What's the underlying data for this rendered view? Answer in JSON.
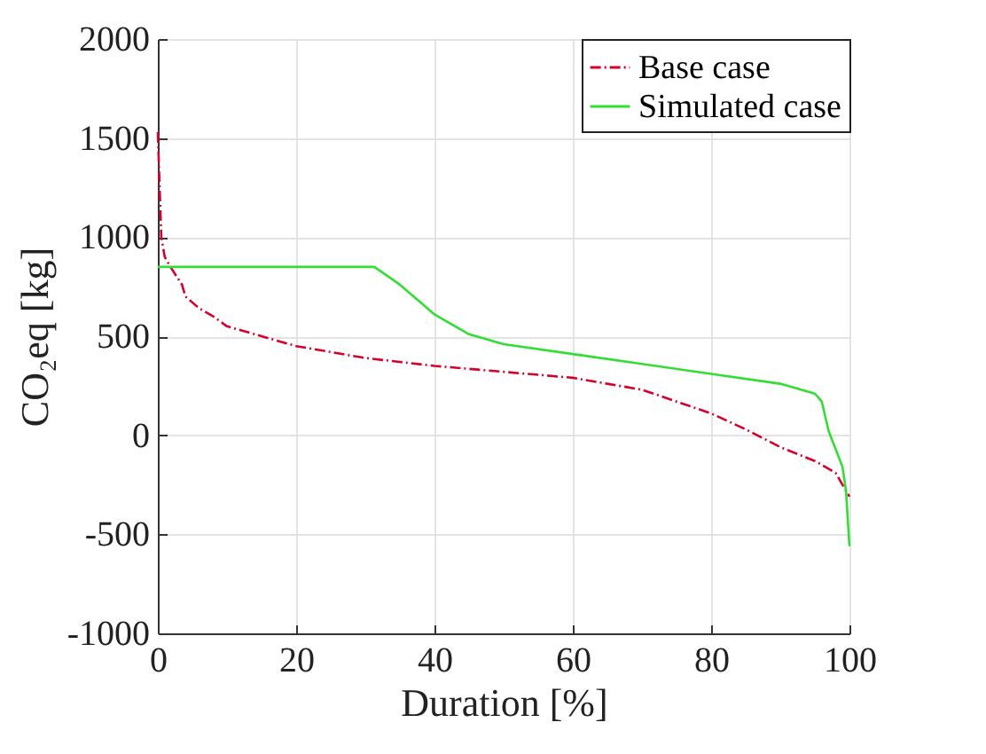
{
  "chart_data": {
    "type": "line",
    "xlabel": "Duration [%]",
    "ylabel": "CO₂eq [kg]",
    "xlim": [
      0,
      100
    ],
    "xticks": [
      0,
      20,
      40,
      60,
      80,
      100
    ],
    "ylim": [
      -1000,
      2000
    ],
    "yticks": [
      -1000,
      -500,
      0,
      500,
      1000,
      1500,
      2000
    ],
    "grid": true,
    "legend": "top right",
    "marker": "none",
    "series": [
      {
        "name": "Base case",
        "color": "#d6002e",
        "line_style": "dashdot",
        "x": [
          0,
          0.5,
          1,
          2,
          3.5,
          4,
          6,
          8,
          10,
          15,
          20,
          25,
          30,
          35,
          40,
          50,
          60,
          65,
          70,
          75,
          80,
          85,
          90,
          95,
          98,
          99.5,
          100
        ],
        "values": [
          1530,
          1000,
          900,
          840,
          760,
          700,
          640,
          600,
          550,
          500,
          450,
          420,
          390,
          370,
          350,
          320,
          290,
          260,
          230,
          170,
          110,
          30,
          -60,
          -130,
          -190,
          -280,
          -310
        ]
      },
      {
        "name": "Simulated case",
        "color": "#33dd33",
        "line_style": "solid",
        "x": [
          0,
          31.3,
          35,
          38,
          40,
          45,
          50,
          60,
          70,
          80,
          90,
          95,
          96,
          97,
          98,
          99,
          99.5,
          100
        ],
        "values": [
          850,
          850,
          760,
          670,
          610,
          510,
          460,
          410,
          360,
          310,
          260,
          210,
          170,
          20,
          -70,
          -160,
          -280,
          -560
        ]
      }
    ]
  }
}
